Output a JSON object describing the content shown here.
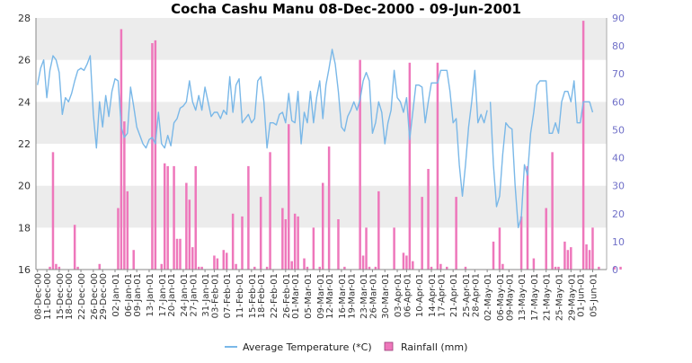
{
  "chart_data": {
    "type": "bar+line",
    "title": "Cocha Cashu Manu  08-Dec-2000 - 09-Jun-2001",
    "start_date": "2000-12-08",
    "end_date": "2001-06-09",
    "y_left": {
      "min": 16,
      "max": 28,
      "ticks": [
        "16",
        "18",
        "20",
        "22",
        "24",
        "26",
        "28"
      ]
    },
    "y_right": {
      "min": 0,
      "max": 90,
      "ticks": [
        "0",
        "10",
        "20",
        "30",
        "40",
        "50",
        "60",
        "70",
        "80",
        "90"
      ]
    },
    "x_ticks": [
      "08-Dec-00",
      "11-Dec-00",
      "15-Dec-00",
      "18-Dec-00",
      "22-Dec-00",
      "26-Dec-00",
      "29-Dec-00",
      "02-Jan-01",
      "06-Jan-01",
      "09-Jan-01",
      "13-Jan-01",
      "17-Jan-01",
      "20-Jan-01",
      "24-Jan-01",
      "27-Jan-01",
      "31-Jan-01",
      "03-Feb-01",
      "07-Feb-01",
      "11-Feb-01",
      "15-Feb-01",
      "18-Feb-01",
      "22-Feb-01",
      "26-Feb-01",
      "01-Mar-01",
      "05-Mar-01",
      "09-Mar-01",
      "12-Mar-01",
      "16-Mar-01",
      "19-Mar-01",
      "23-Mar-01",
      "26-Mar-01",
      "30-Mar-01",
      "03-Apr-01",
      "06-Apr-01",
      "10-Apr-01",
      "14-Apr-01",
      "17-Apr-01",
      "21-Apr-01",
      "25-Apr-01",
      "28-Apr-01",
      "02-May-01",
      "06-May-01",
      "09-May-01",
      "13-May-01",
      "17-May-01",
      "21-May-01",
      "25-May-01",
      "29-May-01",
      "01-Jun-01",
      "05-Jun-01"
    ],
    "series": [
      {
        "name": "Average Temperature (*C)",
        "type": "line",
        "axis": "left",
        "color": "#7ab8e8",
        "values": [
          24.8,
          25.6,
          26.0,
          24.2,
          25.5,
          26.2,
          26.0,
          25.4,
          23.4,
          24.2,
          24.0,
          24.4,
          25.0,
          25.5,
          25.6,
          25.5,
          25.8,
          26.2,
          23.4,
          21.8,
          24.0,
          22.8,
          24.3,
          23.3,
          24.5,
          25.1,
          25.0,
          22.8,
          22.3,
          22.5,
          24.7,
          23.8,
          22.8,
          22.4,
          22.0,
          21.8,
          22.2,
          22.3,
          22.0,
          23.5,
          22.0,
          21.8,
          22.4,
          21.9,
          23.0,
          23.2,
          23.7,
          23.8,
          24.0,
          25.0,
          24.0,
          23.6,
          24.3,
          23.6,
          24.7,
          24.0,
          23.3,
          23.5,
          23.5,
          23.2,
          23.6,
          23.4,
          25.2,
          23.5,
          24.8,
          25.1,
          23.0,
          23.2,
          23.4,
          23.0,
          23.2,
          25.0,
          25.2,
          24.0,
          21.8,
          23.0,
          23.0,
          22.9,
          23.4,
          23.5,
          23.0,
          24.4,
          23.1,
          23.0,
          24.5,
          22.0,
          23.5,
          23.0,
          24.5,
          23.0,
          24.2,
          25.0,
          23.2,
          24.8,
          25.6,
          26.5,
          25.8,
          24.5,
          22.8,
          22.6,
          23.3,
          23.6,
          24.0,
          23.6,
          24.1,
          25.0,
          25.4,
          25.0,
          22.5,
          23.0,
          24.0,
          23.5,
          22.0,
          23.0,
          23.6,
          25.5,
          24.2,
          24.0,
          23.5,
          24.2,
          22.2,
          23.5,
          24.8,
          24.8,
          24.7,
          23.0,
          24.0,
          24.9,
          24.9,
          24.9,
          25.5,
          25.5,
          25.5,
          24.5,
          23.0,
          23.2,
          21.0,
          19.5,
          21.0,
          22.8,
          24.0,
          25.5,
          23.0,
          23.4,
          23.0,
          23.6,
          24.0,
          21.0,
          19.0,
          19.5,
          21.5,
          23.0,
          22.8,
          22.7,
          20.0,
          18.0,
          18.5,
          21.0,
          20.5,
          22.5,
          23.5,
          24.8,
          25.0,
          25.0,
          25.0,
          22.5,
          22.5,
          23.0,
          22.5,
          24.0,
          24.5,
          24.5,
          24.0,
          25.0,
          23.0,
          23.0,
          24.0,
          24.0,
          24.0,
          23.5
        ],
        "gaps_after": [
          145
        ]
      },
      {
        "name": "Rainfall (mm)",
        "type": "bar",
        "axis": "right",
        "color": "#ee77bb",
        "events": [
          [
            4,
            1
          ],
          [
            5,
            42
          ],
          [
            6,
            2
          ],
          [
            7,
            1
          ],
          [
            12,
            16
          ],
          [
            13,
            1
          ],
          [
            20,
            2
          ],
          [
            26,
            22
          ],
          [
            27,
            86
          ],
          [
            28,
            53
          ],
          [
            29,
            28
          ],
          [
            31,
            7
          ],
          [
            37,
            81
          ],
          [
            38,
            82
          ],
          [
            40,
            2
          ],
          [
            41,
            38
          ],
          [
            42,
            37
          ],
          [
            44,
            37
          ],
          [
            45,
            11
          ],
          [
            46,
            11
          ],
          [
            48,
            31
          ],
          [
            49,
            25
          ],
          [
            50,
            8
          ],
          [
            51,
            37
          ],
          [
            52,
            1
          ],
          [
            53,
            1
          ],
          [
            57,
            5
          ],
          [
            58,
            4
          ],
          [
            60,
            7
          ],
          [
            61,
            6
          ],
          [
            63,
            20
          ],
          [
            64,
            2
          ],
          [
            66,
            19
          ],
          [
            68,
            37
          ],
          [
            70,
            1
          ],
          [
            72,
            26
          ],
          [
            74,
            1
          ],
          [
            75,
            42
          ],
          [
            79,
            22
          ],
          [
            80,
            18
          ],
          [
            81,
            52
          ],
          [
            82,
            3
          ],
          [
            83,
            20
          ],
          [
            84,
            19
          ],
          [
            86,
            4
          ],
          [
            87,
            1
          ],
          [
            89,
            15
          ],
          [
            91,
            1
          ],
          [
            92,
            31
          ],
          [
            94,
            44
          ],
          [
            97,
            18
          ],
          [
            99,
            1
          ],
          [
            104,
            75
          ],
          [
            105,
            5
          ],
          [
            106,
            15
          ],
          [
            107,
            1
          ],
          [
            109,
            1
          ],
          [
            110,
            28
          ],
          [
            115,
            15
          ],
          [
            118,
            6
          ],
          [
            119,
            5
          ],
          [
            120,
            74
          ],
          [
            121,
            3
          ],
          [
            124,
            26
          ],
          [
            126,
            36
          ],
          [
            127,
            1
          ],
          [
            129,
            74
          ],
          [
            130,
            2
          ],
          [
            132,
            1
          ],
          [
            135,
            26
          ],
          [
            138,
            1
          ],
          [
            147,
            10
          ],
          [
            149,
            15
          ],
          [
            150,
            2
          ],
          [
            156,
            19
          ],
          [
            158,
            37
          ],
          [
            160,
            4
          ],
          [
            164,
            22
          ],
          [
            166,
            42
          ],
          [
            167,
            1
          ],
          [
            168,
            1
          ],
          [
            170,
            10
          ],
          [
            171,
            7
          ],
          [
            172,
            8
          ],
          [
            176,
            89
          ],
          [
            177,
            9
          ],
          [
            178,
            7
          ],
          [
            179,
            15
          ],
          [
            181,
            1
          ],
          [
            186,
            1
          ],
          [
            188,
            1
          ]
        ]
      }
    ],
    "grid": "horizontal-bands",
    "legend_position": "bottom"
  }
}
